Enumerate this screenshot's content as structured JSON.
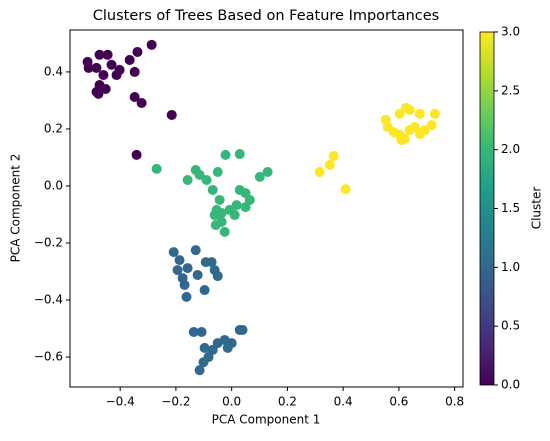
{
  "chart_data": {
    "type": "scatter",
    "title": "Clusters of Trees Based on Feature Importances",
    "x_label": "PCA Component 1",
    "y_label": "PCA Component 2",
    "colorbar_label": "Cluster",
    "colormap": "viridis",
    "clim": [
      0,
      3
    ],
    "cticks": [
      {
        "value": 0,
        "label": "0.0"
      },
      0.5,
      {
        "value": 1,
        "label": "1.0"
      },
      1.5,
      {
        "value": 2,
        "label": "2.0"
      },
      2.5,
      {
        "value": 3,
        "label": "3.0"
      }
    ],
    "xlim": [
      -0.58,
      0.83
    ],
    "ylim": [
      -0.705,
      0.547
    ],
    "xticks": [
      {
        "value": -0.4,
        "label": "−0.4"
      },
      {
        "value": -0.2,
        "label": "−0.2"
      },
      {
        "value": 0,
        "label": "0.0"
      },
      0.2,
      0.4,
      0.6,
      0.8
    ],
    "yticks": [
      {
        "value": -0.6,
        "label": "−0.6"
      },
      {
        "value": -0.4,
        "label": "−0.4"
      },
      {
        "value": -0.2,
        "label": "−0.2"
      },
      {
        "value": 0,
        "label": "0.0"
      },
      0.2,
      0.4
    ],
    "series": [
      {
        "x": [
          -0.287,
          -0.338,
          -0.474,
          -0.445,
          -0.517,
          -0.366,
          -0.431,
          -0.402,
          -0.485,
          -0.46,
          -0.348,
          -0.513,
          -0.413,
          -0.474,
          -0.485,
          -0.452,
          -0.478,
          -0.348,
          -0.323,
          -0.215,
          -0.341,
          -0.269,
          -0.129,
          -0.115,
          -0.022,
          0.029,
          -0.158,
          -0.09,
          -0.05,
          -0.068,
          0.029,
          0.05,
          0.101,
          0.129,
          -0.043,
          -0.054,
          -0.061,
          -0.036,
          -0.007,
          0.018,
          0.05,
          0.065,
          -0.036,
          0.011,
          -0.057,
          -0.025,
          -0.208,
          -0.129,
          -0.187,
          -0.093,
          -0.072,
          -0.194,
          -0.158,
          -0.061,
          -0.176,
          -0.122,
          -0.05,
          -0.169,
          -0.097,
          -0.162,
          -0.136,
          -0.108,
          0.029,
          0.039,
          -0.025,
          -0.05,
          0,
          -0.097,
          -0.068,
          -0.014,
          -0.083,
          -0.101,
          -0.115,
          0.366,
          0.352,
          0.316,
          0.409,
          0.625,
          0.639,
          0.603,
          0.675,
          0.729,
          0.553,
          0.56,
          0.582,
          0.603,
          0.621,
          0.639,
          0.657,
          0.675,
          0.693,
          0.718,
          0.61
        ],
        "values": [
          0.495,
          0.47,
          0.46,
          0.46,
          0.435,
          0.442,
          0.425,
          0.407,
          0.414,
          0.389,
          0.4,
          0.414,
          0.389,
          0.354,
          0.33,
          0.34,
          0.323,
          0.312,
          0.291,
          0.249,
          0.109,
          0.06,
          0.056,
          0.039,
          0.109,
          0.112,
          0.021,
          0.021,
          0.049,
          -0.014,
          -0.014,
          -0.025,
          0.032,
          0.049,
          -0.049,
          -0.084,
          -0.102,
          -0.095,
          -0.084,
          -0.067,
          -0.074,
          -0.049,
          -0.126,
          -0.102,
          -0.137,
          -0.161,
          -0.232,
          -0.225,
          -0.26,
          -0.267,
          -0.267,
          -0.295,
          -0.288,
          -0.295,
          -0.323,
          -0.312,
          -0.316,
          -0.347,
          -0.365,
          -0.389,
          -0.512,
          -0.512,
          -0.505,
          -0.505,
          -0.54,
          -0.551,
          -0.551,
          -0.568,
          -0.575,
          -0.568,
          -0.6,
          -0.618,
          -0.646,
          0.105,
          0.074,
          0.049,
          -0.011,
          0.274,
          0.267,
          0.253,
          0.253,
          0.253,
          0.232,
          0.207,
          0.189,
          0.179,
          0.165,
          0.196,
          0.207,
          0.182,
          0.196,
          0.214,
          0.161
        ],
        "c": [
          0,
          0,
          0,
          0,
          0,
          0,
          0,
          0,
          0,
          0,
          0,
          0,
          0,
          0,
          0,
          0,
          0,
          0,
          0,
          0,
          0,
          2,
          2,
          2,
          2,
          2,
          2,
          2,
          2,
          2,
          2,
          2,
          2,
          2,
          2,
          2,
          2,
          2,
          2,
          2,
          2,
          2,
          2,
          2,
          2,
          2,
          1,
          1,
          1,
          1,
          1,
          1,
          1,
          1,
          1,
          1,
          1,
          1,
          1,
          1,
          1,
          1,
          1,
          1,
          1,
          1,
          1,
          1,
          1,
          1,
          1,
          1,
          1,
          3,
          3,
          3,
          3,
          3,
          3,
          3,
          3,
          3,
          3,
          3,
          3,
          3,
          3,
          3,
          3,
          3,
          3,
          3,
          3
        ]
      }
    ]
  }
}
